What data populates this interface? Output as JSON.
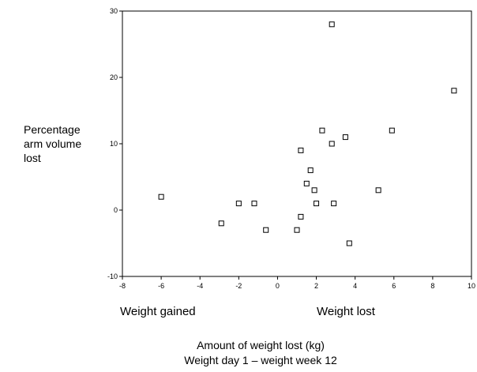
{
  "chart_data": {
    "type": "scatter",
    "title": "",
    "ylabel_lines": [
      "Percentage",
      "arm volume",
      "lost"
    ],
    "xlabel_lines": [
      "Amount of weight lost (kg)",
      "Weight day 1 – weight week 12"
    ],
    "region_labels": {
      "left": "Weight gained",
      "right": "Weight lost"
    },
    "xlim": [
      -8,
      10
    ],
    "ylim": [
      -10,
      30
    ],
    "xticks": [
      -8,
      -6,
      -4,
      -2,
      0,
      2,
      4,
      6,
      8,
      10
    ],
    "yticks": [
      -10,
      0,
      10,
      20,
      30
    ],
    "grid": false,
    "marker": "hollow-square",
    "color": "#000000",
    "points": [
      {
        "x": -6.0,
        "y": 2
      },
      {
        "x": -2.9,
        "y": -2
      },
      {
        "x": -2.0,
        "y": 1
      },
      {
        "x": -1.2,
        "y": 1
      },
      {
        "x": -0.6,
        "y": -3
      },
      {
        "x": 1.0,
        "y": -3
      },
      {
        "x": 1.2,
        "y": 9
      },
      {
        "x": 1.2,
        "y": -1
      },
      {
        "x": 1.5,
        "y": 4
      },
      {
        "x": 1.7,
        "y": 6
      },
      {
        "x": 1.9,
        "y": 3
      },
      {
        "x": 2.0,
        "y": 1
      },
      {
        "x": 2.3,
        "y": 12
      },
      {
        "x": 2.8,
        "y": 28
      },
      {
        "x": 2.8,
        "y": 10
      },
      {
        "x": 2.9,
        "y": 1
      },
      {
        "x": 3.5,
        "y": 11
      },
      {
        "x": 3.7,
        "y": -5
      },
      {
        "x": 5.2,
        "y": 3
      },
      {
        "x": 5.9,
        "y": 12
      },
      {
        "x": 9.1,
        "y": 18
      }
    ]
  }
}
